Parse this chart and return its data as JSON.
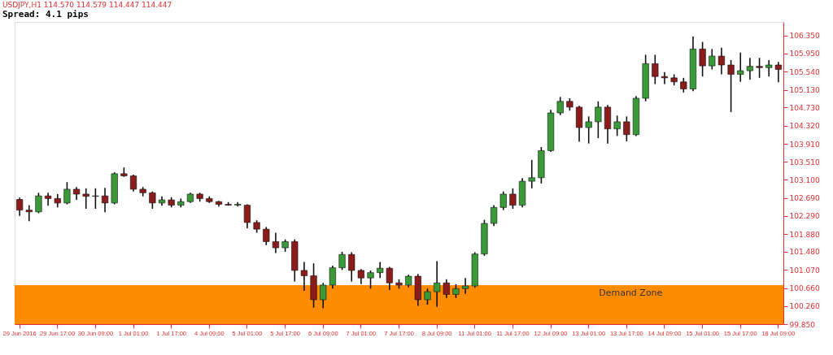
{
  "chart_data": {
    "type": "candlestick",
    "title": "USDJPY,H1  114.570 114.579 114.447 114.447",
    "subtitle": "Spread: 4.1 pips",
    "categories": [
      "29 Jun 2016",
      null,
      null,
      null,
      "29 Jun 17:00",
      null,
      null,
      null,
      "30 Jun 09:00",
      null,
      null,
      null,
      "1 Jul 01:00",
      null,
      null,
      null,
      "1 Jul 17:00",
      null,
      null,
      null,
      "4 Jul 09:00",
      null,
      null,
      null,
      "5 Jul 01:00",
      null,
      null,
      null,
      "5 Jul 17:00",
      null,
      null,
      null,
      "6 Jul 09:00",
      null,
      null,
      null,
      "7 Jul 01:00",
      null,
      null,
      null,
      "7 Jul 17:00",
      null,
      null,
      null,
      "8 Jul 09:00",
      null,
      null,
      null,
      "11 Jul 01:00",
      null,
      null,
      null,
      "11 Jul 17:00",
      null,
      null,
      null,
      "12 Jul 09:00",
      null,
      null,
      null,
      "13 Jul 01:00",
      null,
      null,
      null,
      "13 Jul 17:00",
      null,
      null,
      null,
      "14 Jul 09:00",
      null,
      null,
      null,
      "15 Jul 01:00",
      null,
      null,
      null,
      "15 Jul 17:00",
      null,
      null,
      null,
      "18 Jul 09:00"
    ],
    "ohlc": [
      [
        102.66,
        102.7,
        102.29,
        102.42
      ],
      [
        102.42,
        102.53,
        102.17,
        102.38
      ],
      [
        102.38,
        102.81,
        102.35,
        102.74
      ],
      [
        102.74,
        102.81,
        102.52,
        102.68
      ],
      [
        102.68,
        102.78,
        102.48,
        102.58
      ],
      [
        102.58,
        103.05,
        102.55,
        102.89
      ],
      [
        102.89,
        102.94,
        102.65,
        102.78
      ],
      [
        102.78,
        102.91,
        102.45,
        102.73
      ],
      [
        102.73,
        102.91,
        102.45,
        102.74
      ],
      [
        102.74,
        102.92,
        102.37,
        102.58
      ],
      [
        102.58,
        103.27,
        102.55,
        103.24
      ],
      [
        103.24,
        103.38,
        103.17,
        103.19
      ],
      [
        103.19,
        103.22,
        102.84,
        102.89
      ],
      [
        102.89,
        102.94,
        102.73,
        102.81
      ],
      [
        102.81,
        102.84,
        102.45,
        102.58
      ],
      [
        102.58,
        102.73,
        102.52,
        102.65
      ],
      [
        102.65,
        102.71,
        102.48,
        102.53
      ],
      [
        102.53,
        102.68,
        102.48,
        102.61
      ],
      [
        102.61,
        102.81,
        102.58,
        102.78
      ],
      [
        102.78,
        102.81,
        102.61,
        102.68
      ],
      [
        102.68,
        102.73,
        102.58,
        102.61
      ],
      [
        102.61,
        102.63,
        102.5,
        102.55
      ],
      [
        102.55,
        102.6,
        102.52,
        102.53
      ],
      [
        102.53,
        102.6,
        102.5,
        102.55
      ],
      [
        102.53,
        102.55,
        102.01,
        102.14
      ],
      [
        102.14,
        102.19,
        101.91,
        101.99
      ],
      [
        101.99,
        102.04,
        101.63,
        101.71
      ],
      [
        101.71,
        101.91,
        101.45,
        101.57
      ],
      [
        101.57,
        101.76,
        101.48,
        101.71
      ],
      [
        101.71,
        101.76,
        100.81,
        101.06
      ],
      [
        101.06,
        101.25,
        100.6,
        100.94
      ],
      [
        100.94,
        101.22,
        100.22,
        100.4
      ],
      [
        100.4,
        100.78,
        100.21,
        100.73
      ],
      [
        100.73,
        101.17,
        100.65,
        101.12
      ],
      [
        101.12,
        101.48,
        101.07,
        101.42
      ],
      [
        101.42,
        101.47,
        100.81,
        101.06
      ],
      [
        101.06,
        101.09,
        100.75,
        100.89
      ],
      [
        100.89,
        101.06,
        100.65,
        101.01
      ],
      [
        101.01,
        101.25,
        100.89,
        101.11
      ],
      [
        101.11,
        101.14,
        100.62,
        100.78
      ],
      [
        100.78,
        100.86,
        100.65,
        100.73
      ],
      [
        100.73,
        100.96,
        100.68,
        100.93
      ],
      [
        100.93,
        100.98,
        100.26,
        100.4
      ],
      [
        100.4,
        100.65,
        100.29,
        100.58
      ],
      [
        100.58,
        101.27,
        100.24,
        100.78
      ],
      [
        100.78,
        100.86,
        100.44,
        100.52
      ],
      [
        100.52,
        100.75,
        100.44,
        100.65
      ],
      [
        100.65,
        100.89,
        100.53,
        100.71
      ],
      [
        100.71,
        101.47,
        100.67,
        101.43
      ],
      [
        101.43,
        102.2,
        101.39,
        102.12
      ],
      [
        102.12,
        102.53,
        102.06,
        102.48
      ],
      [
        102.48,
        102.84,
        102.42,
        102.78
      ],
      [
        102.78,
        102.91,
        102.45,
        102.53
      ],
      [
        102.53,
        103.14,
        102.48,
        103.07
      ],
      [
        103.07,
        103.55,
        102.91,
        103.15
      ],
      [
        103.15,
        103.84,
        103.02,
        103.76
      ],
      [
        103.76,
        104.68,
        103.73,
        104.61
      ],
      [
        104.61,
        104.97,
        104.56,
        104.87
      ],
      [
        104.87,
        104.94,
        104.66,
        104.74
      ],
      [
        104.74,
        104.77,
        103.96,
        104.28
      ],
      [
        104.28,
        104.53,
        103.92,
        104.41
      ],
      [
        104.41,
        104.87,
        104.04,
        104.74
      ],
      [
        104.74,
        104.79,
        103.92,
        104.25
      ],
      [
        104.25,
        104.55,
        104.09,
        104.41
      ],
      [
        104.41,
        104.53,
        103.97,
        104.12
      ],
      [
        104.12,
        104.99,
        104.09,
        104.94
      ],
      [
        104.94,
        105.92,
        104.87,
        105.72
      ],
      [
        105.72,
        105.92,
        105.26,
        105.43
      ],
      [
        105.43,
        105.53,
        105.26,
        105.4
      ],
      [
        105.4,
        105.48,
        105.23,
        105.31
      ],
      [
        105.31,
        105.4,
        105.07,
        105.15
      ],
      [
        105.15,
        106.33,
        105.1,
        106.05
      ],
      [
        106.05,
        106.21,
        105.43,
        105.67
      ],
      [
        105.67,
        106.05,
        105.59,
        105.89
      ],
      [
        105.89,
        106.08,
        105.48,
        105.69
      ],
      [
        105.69,
        105.8,
        104.63,
        105.48
      ],
      [
        105.48,
        105.97,
        105.31,
        105.56
      ],
      [
        105.56,
        105.85,
        105.36,
        105.66
      ],
      [
        105.66,
        105.85,
        105.4,
        105.63
      ],
      [
        105.63,
        105.8,
        105.43,
        105.69
      ],
      [
        105.69,
        105.76,
        105.3,
        105.59
      ]
    ],
    "colors": [
      "#8b1c1c",
      "#8b1c1c",
      "#3a9a3a",
      "#8b1c1c",
      "#8b1c1c",
      "#3a9a3a",
      "#8b1c1c",
      "#8b1c1c",
      "#3a9a3a",
      "#8b1c1c",
      "#3a9a3a",
      "#8b1c1c",
      "#8b1c1c",
      "#8b1c1c",
      "#8b1c1c",
      "#3a9a3a",
      "#8b1c1c",
      "#3a9a3a",
      "#3a9a3a",
      "#8b1c1c",
      "#8b1c1c",
      "#8b1c1c",
      "#8b1c1c",
      "#3a9a3a",
      "#8b1c1c",
      "#8b1c1c",
      "#8b1c1c",
      "#8b1c1c",
      "#3a9a3a",
      "#8b1c1c",
      "#8b1c1c",
      "#8b1c1c",
      "#3a9a3a",
      "#3a9a3a",
      "#3a9a3a",
      "#8b1c1c",
      "#8b1c1c",
      "#3a9a3a",
      "#3a9a3a",
      "#8b1c1c",
      "#8b1c1c",
      "#3a9a3a",
      "#8b1c1c",
      "#3a9a3a",
      "#3a9a3a",
      "#8b1c1c",
      "#3a9a3a",
      "#3a9a3a",
      "#3a9a3a",
      "#3a9a3a",
      "#3a9a3a",
      "#3a9a3a",
      "#8b1c1c",
      "#3a9a3a",
      "#3a9a3a",
      "#3a9a3a",
      "#3a9a3a",
      "#3a9a3a",
      "#8b1c1c",
      "#8b1c1c",
      "#3a9a3a",
      "#3a9a3a",
      "#8b1c1c",
      "#3a9a3a",
      "#8b1c1c",
      "#3a9a3a",
      "#3a9a3a",
      "#8b1c1c",
      "#8b1c1c",
      "#8b1c1c",
      "#8b1c1c",
      "#3a9a3a",
      "#8b1c1c",
      "#3a9a3a",
      "#8b1c1c",
      "#8b1c1c",
      "#3a9a3a",
      "#3a9a3a",
      "#8b1c1c",
      "#3a9a3a",
      "#8b1c1c"
    ],
    "ylim": [
      99.85,
      106.66
    ],
    "yticks": [
      {
        "value": 106.35,
        "label": "106.350"
      },
      {
        "value": 105.95,
        "label": "105.950"
      },
      {
        "value": 105.54,
        "label": "105.540"
      },
      {
        "value": 105.13,
        "label": "105.130"
      },
      {
        "value": 104.73,
        "label": "104.730"
      },
      {
        "value": 104.32,
        "label": "104.320"
      },
      {
        "value": 103.91,
        "label": "103.910"
      },
      {
        "value": 103.51,
        "label": "103.510"
      },
      {
        "value": 103.1,
        "label": "103.100"
      },
      {
        "value": 102.69,
        "label": "102.690"
      },
      {
        "value": 102.29,
        "label": "102.290"
      },
      {
        "value": 101.88,
        "label": "101.880"
      },
      {
        "value": 101.48,
        "label": "101.480"
      },
      {
        "value": 101.07,
        "label": "101.070"
      },
      {
        "value": 100.66,
        "label": "100.660"
      },
      {
        "value": 100.26,
        "label": "100.260"
      },
      {
        "value": 99.85,
        "label": "99.850"
      }
    ],
    "bands": [
      {
        "axis": "y",
        "from": 99.85,
        "to": 100.73,
        "label": "Demand Zone",
        "color": "#ff8c00"
      }
    ],
    "grid": false
  }
}
